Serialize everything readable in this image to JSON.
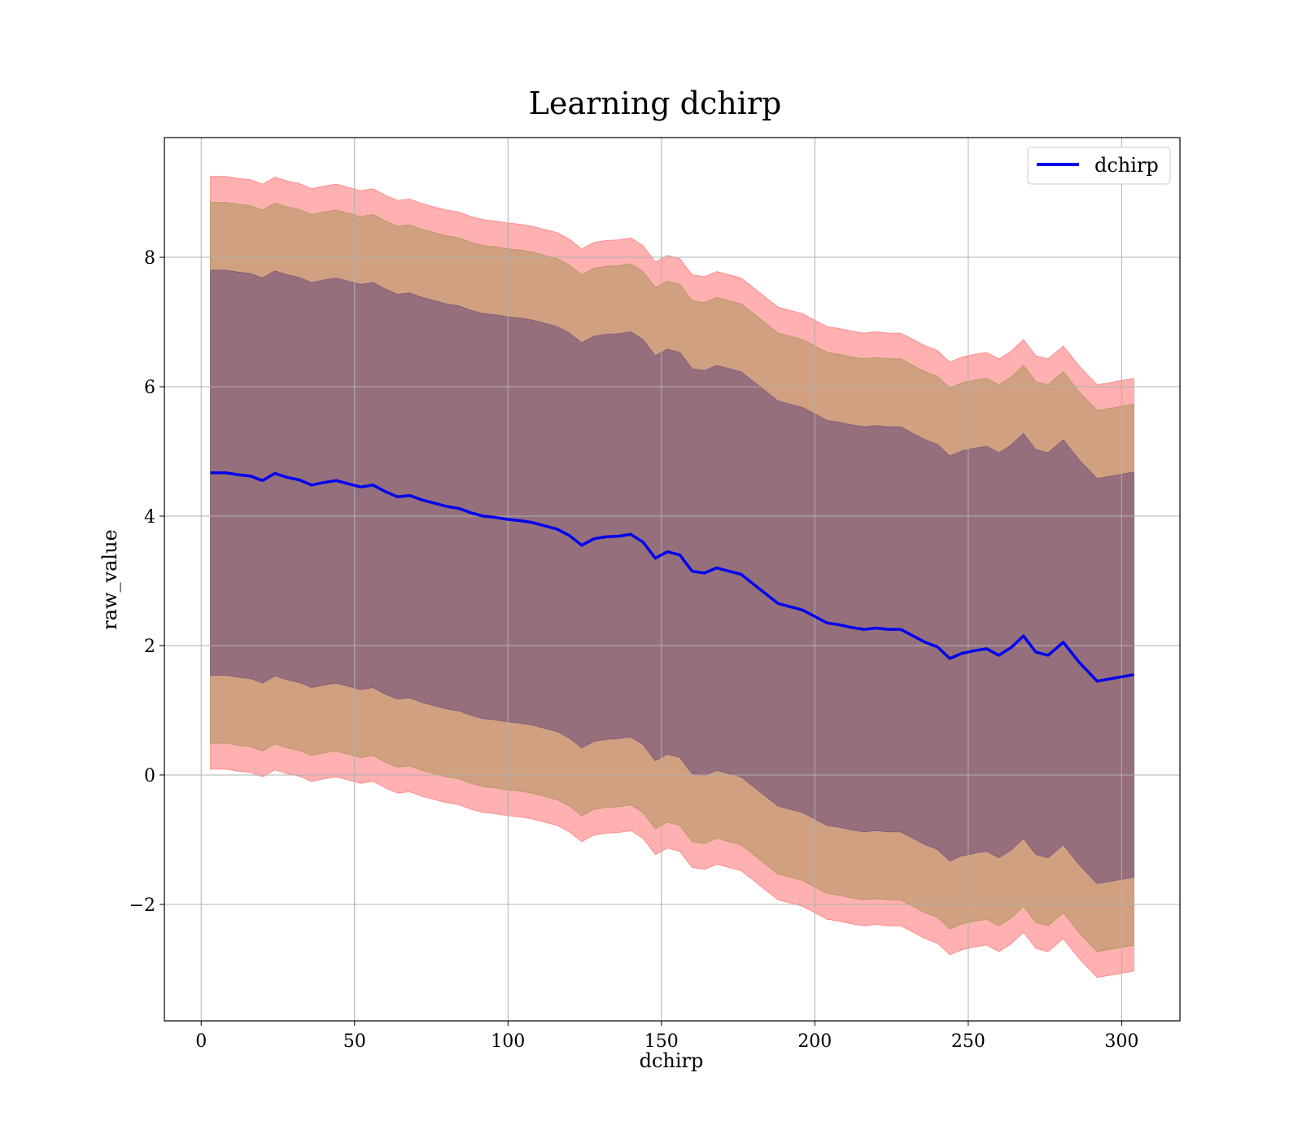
{
  "chart_data": {
    "type": "line",
    "title": "Learning dchirp",
    "xlabel": "dchirp",
    "ylabel": "raw_value",
    "xlim": [
      -12,
      319
    ],
    "ylim": [
      -3.8,
      9.85
    ],
    "xticks": [
      0,
      50,
      100,
      150,
      200,
      250,
      300
    ],
    "yticks": [
      -2,
      0,
      2,
      4,
      6,
      8
    ],
    "ytick_labels": [
      "−2",
      "0",
      "2",
      "4",
      "6",
      "8"
    ],
    "grid": true,
    "legend_position": "top-right",
    "series": [
      {
        "name": "dchirp",
        "color": "#0000ee",
        "x": [
          3,
          8,
          12,
          16,
          20,
          24,
          28,
          32,
          36,
          40,
          44,
          48,
          52,
          56,
          60,
          64,
          68,
          72,
          76,
          80,
          84,
          88,
          92,
          96,
          100,
          104,
          108,
          112,
          116,
          120,
          124,
          128,
          132,
          136,
          140,
          144,
          148,
          152,
          156,
          160,
          164,
          168,
          172,
          176,
          180,
          184,
          188,
          192,
          196,
          200,
          204,
          208,
          212,
          216,
          220,
          224,
          228,
          232,
          236,
          240,
          244,
          248,
          252,
          256,
          260,
          264,
          268,
          272,
          276,
          281,
          286,
          292,
          298,
          304
        ],
        "y": [
          4.67,
          4.67,
          4.64,
          4.62,
          4.55,
          4.66,
          4.6,
          4.56,
          4.48,
          4.52,
          4.55,
          4.5,
          4.45,
          4.48,
          4.38,
          4.3,
          4.32,
          4.25,
          4.2,
          4.15,
          4.12,
          4.05,
          4.0,
          3.98,
          3.95,
          3.93,
          3.9,
          3.85,
          3.8,
          3.7,
          3.55,
          3.65,
          3.68,
          3.69,
          3.72,
          3.6,
          3.35,
          3.45,
          3.4,
          3.15,
          3.12,
          3.2,
          3.15,
          3.1,
          2.95,
          2.8,
          2.65,
          2.6,
          2.55,
          2.45,
          2.35,
          2.32,
          2.28,
          2.25,
          2.27,
          2.25,
          2.25,
          2.15,
          2.05,
          1.98,
          1.8,
          1.88,
          1.92,
          1.95,
          1.85,
          1.97,
          2.15,
          1.9,
          1.85,
          2.05,
          1.75,
          1.45,
          1.5,
          1.55
        ]
      }
    ],
    "bands": [
      {
        "color": "#ff5050",
        "opacity": 0.45,
        "sigma": 3,
        "spread": [
          4.58,
          4.58,
          4.58,
          4.58,
          4.58,
          4.58,
          4.58,
          4.58,
          4.58,
          4.58,
          4.58,
          4.58,
          4.58,
          4.58,
          4.58,
          4.58,
          4.58,
          4.58,
          4.58,
          4.58,
          4.58,
          4.58,
          4.58,
          4.58,
          4.58,
          4.58,
          4.58,
          4.58,
          4.58,
          4.58,
          4.58,
          4.58,
          4.58,
          4.58,
          4.58,
          4.58,
          4.58,
          4.58,
          4.58,
          4.58,
          4.58,
          4.58,
          4.58,
          4.58,
          4.58,
          4.58,
          4.58,
          4.58,
          4.58,
          4.58,
          4.58,
          4.58,
          4.58,
          4.58,
          4.58,
          4.58,
          4.58,
          4.58,
          4.58,
          4.58,
          4.58,
          4.58,
          4.58,
          4.58,
          4.58,
          4.58,
          4.58,
          4.58,
          4.58,
          4.58,
          4.58,
          4.58,
          4.58,
          4.58
        ]
      },
      {
        "color": "#8c8a3a",
        "opacity": 0.4,
        "sigma": 2,
        "spread": [
          4.18,
          4.18,
          4.18,
          4.18,
          4.18,
          4.18,
          4.18,
          4.18,
          4.18,
          4.18,
          4.18,
          4.18,
          4.18,
          4.18,
          4.18,
          4.18,
          4.18,
          4.18,
          4.18,
          4.18,
          4.18,
          4.18,
          4.18,
          4.18,
          4.18,
          4.18,
          4.18,
          4.18,
          4.18,
          4.18,
          4.18,
          4.18,
          4.18,
          4.18,
          4.18,
          4.18,
          4.18,
          4.18,
          4.18,
          4.18,
          4.18,
          4.18,
          4.18,
          4.18,
          4.18,
          4.18,
          4.18,
          4.18,
          4.18,
          4.18,
          4.18,
          4.18,
          4.18,
          4.18,
          4.18,
          4.18,
          4.18,
          4.18,
          4.18,
          4.18,
          4.18,
          4.18,
          4.18,
          4.18,
          4.18,
          4.18,
          4.18,
          4.18,
          4.18,
          4.18,
          4.18,
          4.18,
          4.18,
          4.18
        ]
      },
      {
        "color": "#5c3d7a",
        "opacity": 0.5,
        "sigma": 1,
        "spread": [
          3.13,
          3.13,
          3.13,
          3.13,
          3.13,
          3.13,
          3.13,
          3.13,
          3.13,
          3.13,
          3.13,
          3.13,
          3.13,
          3.13,
          3.13,
          3.13,
          3.13,
          3.13,
          3.13,
          3.13,
          3.13,
          3.13,
          3.13,
          3.13,
          3.13,
          3.13,
          3.13,
          3.13,
          3.13,
          3.13,
          3.13,
          3.13,
          3.13,
          3.13,
          3.13,
          3.13,
          3.13,
          3.13,
          3.13,
          3.13,
          3.13,
          3.13,
          3.13,
          3.13,
          3.13,
          3.13,
          3.13,
          3.13,
          3.13,
          3.13,
          3.13,
          3.13,
          3.13,
          3.13,
          3.13,
          3.13,
          3.13,
          3.13,
          3.13,
          3.13,
          3.13,
          3.13,
          3.13,
          3.13,
          3.13,
          3.13,
          3.13,
          3.13,
          3.13,
          3.13,
          3.13,
          3.13,
          3.13,
          3.13
        ]
      }
    ]
  }
}
